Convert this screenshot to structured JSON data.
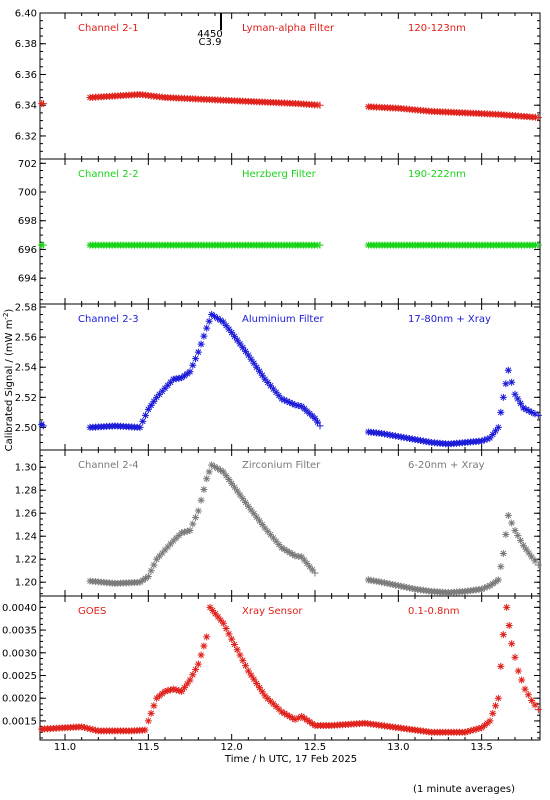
{
  "figure": {
    "xlabel": "Time / h UTC, 17 Feb 2025",
    "ylabel": "Calibrated Signal / (mW m",
    "ylabel_sup": "-2",
    "ylabel_close": ")",
    "footnote": "(1 minute averages)",
    "xlim": [
      10.85,
      13.85
    ],
    "x_ticks": [
      "11.0",
      "11.5",
      "12.0",
      "12.5",
      "13.0",
      "13.5"
    ]
  },
  "annotations": {
    "marker_value_top": "4450",
    "marker_value_bottom": "C3.9",
    "marker_time": 11.87
  },
  "chart_data": [
    {
      "type": "scatter",
      "labels": [
        "Channel 2-1",
        "Lyman-alpha Filter",
        "120-123nm"
      ],
      "color": "#e0201a",
      "ylim": [
        6.305,
        6.4
      ],
      "y_ticks": [
        "6.32",
        "6.34",
        "6.36",
        "6.38",
        "6.40"
      ],
      "series": [
        {
          "x": [
            10.86,
            10.87
          ],
          "y": [
            6.341,
            6.341
          ]
        },
        {
          "x": [
            11.15,
            11.3,
            11.45,
            11.6,
            11.8,
            12.0,
            12.2,
            12.4,
            12.53
          ],
          "y": [
            6.345,
            6.346,
            6.347,
            6.345,
            6.344,
            6.343,
            6.342,
            6.341,
            6.34
          ]
        },
        {
          "x": [
            12.82,
            13.0,
            13.2,
            13.4,
            13.6,
            13.84
          ],
          "y": [
            6.339,
            6.338,
            6.336,
            6.335,
            6.334,
            6.332
          ]
        }
      ]
    },
    {
      "type": "scatter",
      "labels": [
        "Channel 2-2",
        "Herzberg Filter",
        "190-222nm"
      ],
      "color": "#19d419",
      "ylim": [
        692.2,
        702.3
      ],
      "y_ticks": [
        "694",
        "696",
        "698",
        "700",
        "702"
      ],
      "series": [
        {
          "x": [
            10.86,
            10.87
          ],
          "y": [
            696.3,
            696.3
          ]
        },
        {
          "x": [
            11.15,
            11.5,
            12.0,
            12.53
          ],
          "y": [
            696.3,
            696.3,
            696.3,
            696.3
          ]
        },
        {
          "x": [
            12.82,
            13.3,
            13.84
          ],
          "y": [
            696.3,
            696.3,
            696.3
          ]
        }
      ]
    },
    {
      "type": "scatter",
      "labels": [
        "Channel 2-3",
        "Aluminium Filter",
        "17-80nm + Xray"
      ],
      "color": "#1a1ad8",
      "ylim": [
        2.485,
        2.582
      ],
      "y_ticks": [
        "2.50",
        "2.52",
        "2.54",
        "2.56",
        "2.58"
      ],
      "series": [
        {
          "x": [
            10.86,
            10.87
          ],
          "y": [
            2.502,
            2.501
          ]
        },
        {
          "x": [
            11.15,
            11.3,
            11.45,
            11.5,
            11.55,
            11.6,
            11.65,
            11.7,
            11.75,
            11.8,
            11.85,
            11.88,
            11.95,
            12.0,
            12.1,
            12.2,
            12.3,
            12.38,
            12.42,
            12.5,
            12.53
          ],
          "y": [
            2.5,
            2.501,
            2.5,
            2.512,
            2.52,
            2.526,
            2.532,
            2.533,
            2.537,
            2.55,
            2.566,
            2.575,
            2.57,
            2.563,
            2.548,
            2.532,
            2.519,
            2.515,
            2.514,
            2.506,
            2.501
          ]
        },
        {
          "x": [
            12.82,
            12.9,
            13.0,
            13.1,
            13.2,
            13.3,
            13.4,
            13.5,
            13.55,
            13.6,
            13.63,
            13.66,
            13.7,
            13.75,
            13.8,
            13.84
          ],
          "y": [
            2.497,
            2.496,
            2.494,
            2.492,
            2.49,
            2.489,
            2.49,
            2.491,
            2.493,
            2.5,
            2.52,
            2.538,
            2.522,
            2.513,
            2.51,
            2.508
          ]
        }
      ]
    },
    {
      "type": "scatter",
      "labels": [
        "Channel 2-4",
        "Zirconium Filter",
        "6-20nm + Xray"
      ],
      "color": "#7a7a7a",
      "ylim": [
        1.188,
        1.315
      ],
      "y_ticks": [
        "1.20",
        "1.22",
        "1.24",
        "1.26",
        "1.28",
        "1.30"
      ],
      "series": [
        {
          "x": [
            11.15,
            11.3,
            11.45,
            11.5,
            11.55,
            11.6,
            11.65,
            11.7,
            11.75,
            11.8,
            11.85,
            11.88,
            11.95,
            12.0,
            12.1,
            12.2,
            12.3,
            12.38,
            12.42,
            12.5
          ],
          "y": [
            1.201,
            1.199,
            1.2,
            1.205,
            1.22,
            1.228,
            1.236,
            1.243,
            1.245,
            1.262,
            1.29,
            1.302,
            1.296,
            1.286,
            1.266,
            1.247,
            1.23,
            1.223,
            1.222,
            1.208
          ]
        },
        {
          "x": [
            12.82,
            12.9,
            13.0,
            13.1,
            13.2,
            13.3,
            13.4,
            13.5,
            13.55,
            13.6,
            13.63,
            13.66,
            13.7,
            13.75,
            13.8,
            13.84
          ],
          "y": [
            1.202,
            1.2,
            1.197,
            1.194,
            1.192,
            1.191,
            1.192,
            1.194,
            1.197,
            1.202,
            1.225,
            1.258,
            1.245,
            1.232,
            1.222,
            1.215
          ]
        }
      ]
    },
    {
      "type": "scatter",
      "labels": [
        "GOES",
        "Xray Sensor",
        "0.1-0.8nm"
      ],
      "color": "#e0201a",
      "ylim": [
        0.00108,
        0.00425
      ],
      "y_ticks": [
        "0.0015",
        "0.0020",
        "0.0025",
        "0.0030",
        "0.0035",
        "0.0040"
      ],
      "series": [
        {
          "x": [
            10.86,
            11.0,
            11.1,
            11.2,
            11.3,
            11.4,
            11.48,
            11.5,
            11.55,
            11.6,
            11.65,
            11.7,
            11.75,
            11.8,
            11.85,
            11.87,
            11.95,
            12.0,
            12.1,
            12.2,
            12.3,
            12.38,
            12.42,
            12.5,
            12.6,
            12.8,
            13.0,
            13.2,
            13.4,
            13.5,
            13.55,
            13.6,
            13.63,
            13.65,
            13.68,
            13.72,
            13.76,
            13.8,
            13.84
          ],
          "y": [
            0.00132,
            0.00135,
            0.00137,
            0.00128,
            0.00128,
            0.00128,
            0.0013,
            0.0015,
            0.002,
            0.00215,
            0.0022,
            0.00215,
            0.0024,
            0.00275,
            0.00335,
            0.004,
            0.00365,
            0.0033,
            0.0026,
            0.00205,
            0.0017,
            0.00153,
            0.0016,
            0.0014,
            0.0014,
            0.00145,
            0.00135,
            0.00125,
            0.00125,
            0.00135,
            0.0015,
            0.002,
            0.0034,
            0.004,
            0.0032,
            0.0026,
            0.0022,
            0.00195,
            0.00175
          ]
        }
      ]
    }
  ]
}
